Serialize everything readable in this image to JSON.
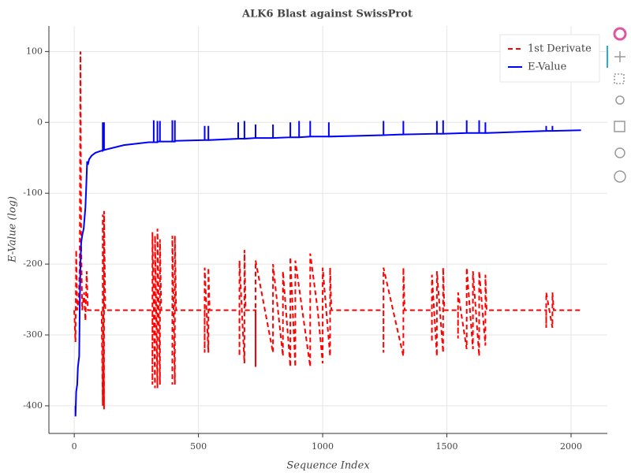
{
  "chart_data": {
    "type": "line",
    "title": "ALK6 Blast against SwissProt",
    "x_label": "Sequence Index",
    "y_label": "E-Value (log)",
    "xlim": [
      -102,
      2146
    ],
    "ylim": [
      -439,
      136
    ],
    "xticks": [
      0,
      500,
      1000,
      1500,
      2000
    ],
    "yticks": [
      -400,
      -300,
      -200,
      -100,
      0,
      100
    ],
    "grid": true,
    "legend": "top-right",
    "series": [
      {
        "name": "1st Derivate",
        "color": "#ff0000",
        "dashed": true,
        "x": [
          0,
          5,
          8,
          12,
          18,
          22,
          25,
          28,
          32,
          40,
          45,
          50,
          55,
          110,
          115,
          115,
          120,
          120,
          125,
          315,
          315,
          315,
          325,
          325,
          335,
          335,
          345,
          345,
          350,
          395,
          395,
          395,
          405,
          405,
          410,
          525,
          525,
          525,
          540,
          540,
          545,
          665,
          665,
          665,
          685,
          685,
          690,
          730,
          730,
          730,
          800,
          800,
          840,
          840,
          870,
          870,
          890,
          890,
          950,
          950,
          980,
          1000,
          1000,
          1030,
          1030,
          1035,
          1245,
          1245,
          1245,
          1325,
          1325,
          1330,
          1440,
          1440,
          1440,
          1460,
          1460,
          1485,
          1485,
          1490,
          1545,
          1545,
          1545,
          1580,
          1580,
          1605,
          1605,
          1630,
          1630,
          1655,
          1655,
          1660,
          1900,
          1900,
          1900,
          1925,
          1925,
          1930,
          2040
        ],
        "values": [
          -265,
          -310,
          -180,
          -265,
          -250,
          -200,
          100,
          -170,
          -265,
          -240,
          -280,
          -210,
          -265,
          -265,
          -400,
          -130,
          -405,
          -125,
          -265,
          -265,
          -370,
          -155,
          -375,
          -160,
          -375,
          -150,
          -370,
          -165,
          -265,
          -265,
          -370,
          -160,
          -370,
          -160,
          -265,
          -265,
          -325,
          -205,
          -325,
          -205,
          -265,
          -265,
          -330,
          -195,
          -340,
          -180,
          -265,
          -265,
          -345,
          -195,
          -325,
          -200,
          -330,
          -210,
          -345,
          -190,
          -345,
          -195,
          -345,
          -185,
          -265,
          -340,
          -205,
          -330,
          -205,
          -265,
          -265,
          -325,
          -205,
          -330,
          -205,
          -265,
          -265,
          -310,
          -215,
          -330,
          -210,
          -325,
          -205,
          -265,
          -265,
          -305,
          -240,
          -320,
          -205,
          -320,
          -210,
          -330,
          -210,
          -315,
          -215,
          -265,
          -265,
          -290,
          -240,
          -290,
          -240,
          -265,
          -265
        ]
      },
      {
        "name": "E-Value",
        "color": "#0000ff",
        "dashed": false,
        "x": [
          5,
          5,
          8,
          12,
          15,
          20,
          22,
          25,
          28,
          32,
          38,
          45,
          48,
          52,
          55,
          60,
          70,
          85,
          110,
          115,
          115,
          115,
          120,
          120,
          120,
          200,
          300,
          320,
          320,
          320,
          335,
          335,
          335,
          345,
          345,
          345,
          395,
          395,
          395,
          405,
          405,
          405,
          525,
          525,
          525,
          540,
          540,
          540,
          660,
          660,
          660,
          685,
          685,
          685,
          730,
          730,
          730,
          800,
          800,
          800,
          870,
          870,
          870,
          905,
          905,
          905,
          950,
          950,
          950,
          1025,
          1025,
          1025,
          1245,
          1245,
          1245,
          1325,
          1325,
          1325,
          1460,
          1460,
          1460,
          1485,
          1485,
          1485,
          1580,
          1580,
          1580,
          1630,
          1630,
          1630,
          1655,
          1655,
          1655,
          1900,
          1900,
          1900,
          1925,
          1925,
          1925,
          2040
        ],
        "values": [
          -400,
          -415,
          -380,
          -370,
          -345,
          -330,
          -260,
          -200,
          -170,
          -160,
          -150,
          -120,
          -95,
          -55,
          -60,
          -52,
          -47,
          -43,
          -40,
          -40,
          0,
          -40,
          -39,
          0,
          -39,
          -32,
          -28,
          -28,
          3,
          -28,
          -28,
          2,
          -27,
          -27,
          2,
          -27,
          -27,
          3,
          -27,
          -27,
          3,
          -26,
          -25,
          -5,
          -25,
          -25,
          -5,
          -25,
          -23,
          0,
          -23,
          -23,
          2,
          -23,
          -22,
          -3,
          -22,
          -22,
          -3,
          -22,
          -21,
          0,
          -21,
          -21,
          2,
          -21,
          -20,
          2,
          -20,
          -20,
          0,
          -20,
          -18,
          2,
          -18,
          -17,
          2,
          -17,
          -16,
          2,
          -16,
          -16,
          3,
          -16,
          -15,
          3,
          -15,
          -15,
          3,
          -15,
          -15,
          0,
          -15,
          -12,
          -5,
          -12,
          -12,
          -5,
          -12,
          -11
        ]
      }
    ]
  }
}
